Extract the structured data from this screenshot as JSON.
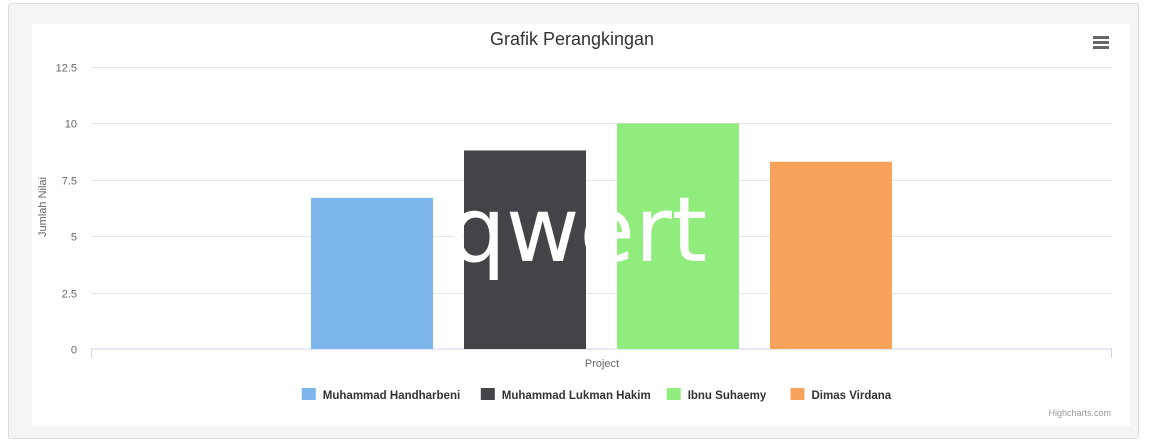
{
  "chart_data": {
    "type": "bar",
    "title": "Grafik Perangkingan",
    "xlabel": "Project",
    "ylabel": "Jumlah Nilai",
    "categories": [
      "Project"
    ],
    "ylim": [
      0,
      12.5
    ],
    "yticks": [
      0,
      2.5,
      5,
      7.5,
      10,
      12.5
    ],
    "ytick_labels": [
      "0",
      "2.5",
      "5",
      "7.5",
      "10",
      "12.5"
    ],
    "grid": true,
    "legend_position": "bottom",
    "series": [
      {
        "name": "Muhammad Handharbeni",
        "values": [
          6.7
        ],
        "color": "#7cb5ec"
      },
      {
        "name": "Muhammad Lukman Hakim",
        "values": [
          8.8
        ],
        "color": "#434348"
      },
      {
        "name": "Ibnu Suhaemy",
        "values": [
          10
        ],
        "color": "#90ed7d"
      },
      {
        "name": "Dimas Virdana",
        "values": [
          8.3
        ],
        "color": "#f7a35c"
      }
    ],
    "watermark_text": "qwert",
    "credits": "Highcharts.com"
  },
  "menu_icon": "hamburger-menu-icon"
}
